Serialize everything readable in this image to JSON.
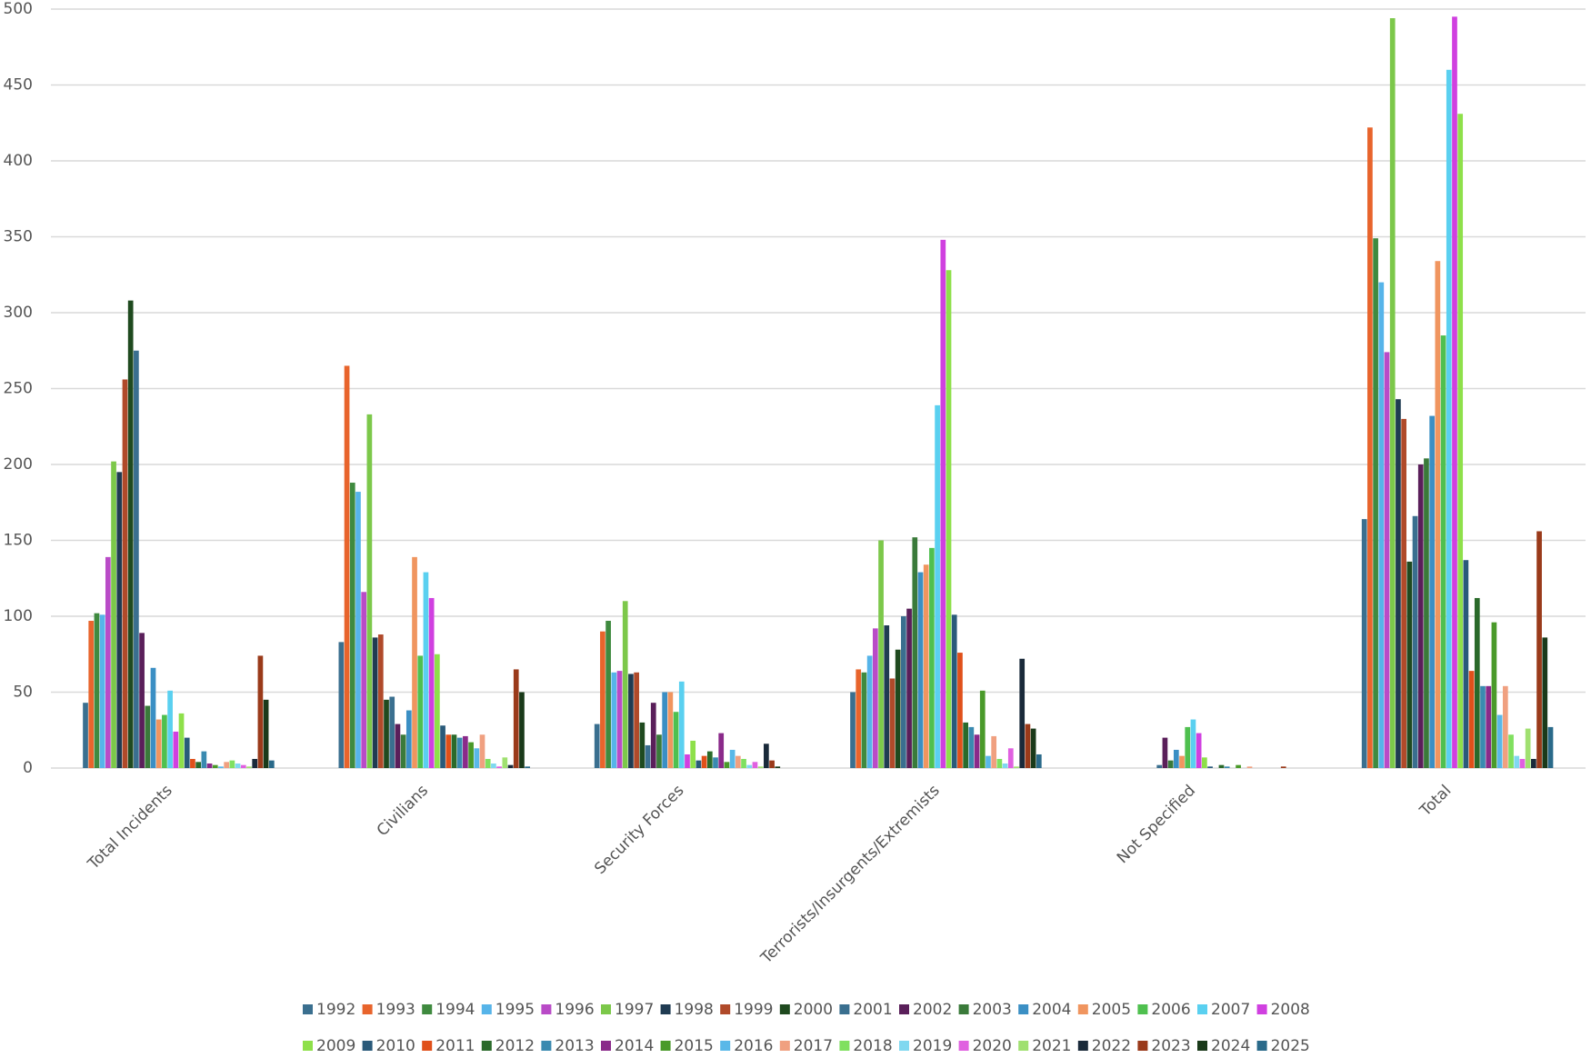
{
  "chart_data": {
    "type": "bar",
    "categories": [
      "Total Incidents",
      "Civilians",
      "Security Forces",
      "Terrorists/Insurgents/Extremists",
      "Not Specified",
      "Total"
    ],
    "ylim": [
      0,
      500
    ],
    "yticks": [
      0,
      50,
      100,
      150,
      200,
      250,
      300,
      350,
      400,
      450,
      500
    ],
    "grid": true,
    "legend": "bottom",
    "series": [
      {
        "name": "1992",
        "color": "#3a6f8f",
        "values": [
          43,
          83,
          29,
          50,
          0,
          164
        ]
      },
      {
        "name": "1993",
        "color": "#e8642c",
        "values": [
          97,
          265,
          90,
          65,
          0,
          422
        ]
      },
      {
        "name": "1994",
        "color": "#3f8a3f",
        "values": [
          102,
          188,
          97,
          63,
          0,
          349
        ]
      },
      {
        "name": "1995",
        "color": "#56b4e9",
        "values": [
          101,
          182,
          63,
          74,
          0,
          320
        ]
      },
      {
        "name": "1996",
        "color": "#b94bc7",
        "values": [
          139,
          116,
          64,
          92,
          0,
          274
        ]
      },
      {
        "name": "1997",
        "color": "#7cc84a",
        "values": [
          202,
          233,
          110,
          150,
          0,
          494
        ]
      },
      {
        "name": "1998",
        "color": "#1f3b52",
        "values": [
          195,
          86,
          62,
          94,
          0,
          243
        ]
      },
      {
        "name": "1999",
        "color": "#b04a2a",
        "values": [
          256,
          88,
          63,
          59,
          0,
          230
        ]
      },
      {
        "name": "2000",
        "color": "#1f4a1f",
        "values": [
          308,
          45,
          30,
          78,
          0,
          136
        ]
      },
      {
        "name": "2001",
        "color": "#3a6f8f",
        "values": [
          275,
          47,
          15,
          100,
          2,
          166
        ]
      },
      {
        "name": "2002",
        "color": "#5a1f5a",
        "values": [
          89,
          29,
          43,
          105,
          20,
          200
        ]
      },
      {
        "name": "2003",
        "color": "#3a7a3a",
        "values": [
          41,
          22,
          22,
          152,
          5,
          204
        ]
      },
      {
        "name": "2004",
        "color": "#3b8fc4",
        "values": [
          66,
          38,
          50,
          129,
          12,
          232
        ]
      },
      {
        "name": "2005",
        "color": "#f0955f",
        "values": [
          32,
          139,
          50,
          134,
          8,
          334
        ]
      },
      {
        "name": "2006",
        "color": "#4fc04f",
        "values": [
          35,
          74,
          37,
          145,
          27,
          285
        ]
      },
      {
        "name": "2007",
        "color": "#5ad0f0",
        "values": [
          51,
          129,
          57,
          239,
          32,
          460
        ]
      },
      {
        "name": "2008",
        "color": "#d040e0",
        "values": [
          24,
          112,
          9,
          348,
          23,
          495
        ]
      },
      {
        "name": "2009",
        "color": "#8ee04a",
        "values": [
          36,
          75,
          18,
          328,
          7,
          431
        ]
      },
      {
        "name": "2010",
        "color": "#2a5a7a",
        "values": [
          20,
          28,
          5,
          101,
          1,
          137
        ]
      },
      {
        "name": "2011",
        "color": "#e0501a",
        "values": [
          6,
          22,
          8,
          76,
          0,
          64
        ]
      },
      {
        "name": "2012",
        "color": "#2a6a2a",
        "values": [
          4,
          22,
          11,
          30,
          2,
          112
        ]
      },
      {
        "name": "2013",
        "color": "#3a8ab0",
        "values": [
          11,
          20,
          7,
          27,
          1,
          54
        ]
      },
      {
        "name": "2014",
        "color": "#8a2a8a",
        "values": [
          3,
          21,
          23,
          22,
          0,
          54
        ]
      },
      {
        "name": "2015",
        "color": "#4a9a2a",
        "values": [
          2,
          17,
          4,
          51,
          2,
          96
        ]
      },
      {
        "name": "2016",
        "color": "#5ab8e8",
        "values": [
          1,
          13,
          12,
          8,
          0,
          35
        ]
      },
      {
        "name": "2017",
        "color": "#f0a080",
        "values": [
          4,
          22,
          8,
          21,
          1,
          54
        ]
      },
      {
        "name": "2018",
        "color": "#80e060",
        "values": [
          5,
          6,
          6,
          6,
          0,
          22
        ]
      },
      {
        "name": "2019",
        "color": "#80d8f0",
        "values": [
          3,
          3,
          2,
          3,
          0,
          8
        ]
      },
      {
        "name": "2020",
        "color": "#e060e0",
        "values": [
          2,
          1,
          4,
          13,
          0,
          6
        ]
      },
      {
        "name": "2021",
        "color": "#a0e070",
        "values": [
          1,
          7,
          1,
          1,
          0,
          26
        ]
      },
      {
        "name": "2022",
        "color": "#1a2a3a",
        "values": [
          6,
          2,
          16,
          72,
          0,
          6
        ]
      },
      {
        "name": "2023",
        "color": "#9a3a1a",
        "values": [
          74,
          65,
          5,
          29,
          1,
          156
        ]
      },
      {
        "name": "2024",
        "color": "#1a3a1a",
        "values": [
          45,
          50,
          1,
          26,
          0,
          86
        ]
      },
      {
        "name": "2025",
        "color": "#2a6a8a",
        "values": [
          5,
          1,
          0,
          9,
          0,
          27
        ]
      }
    ]
  }
}
